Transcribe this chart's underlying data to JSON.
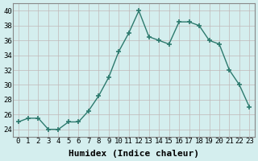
{
  "x": [
    0,
    1,
    2,
    3,
    4,
    5,
    6,
    7,
    8,
    9,
    10,
    11,
    12,
    13,
    14,
    15,
    16,
    17,
    18,
    19,
    20,
    21,
    22,
    23
  ],
  "y": [
    25,
    25.5,
    25.5,
    24,
    24,
    25,
    25,
    26.5,
    28.5,
    31,
    34.5,
    37,
    40,
    36.5,
    36,
    35.5,
    38.5,
    38.5,
    38,
    36,
    35.5,
    32,
    30,
    27
  ],
  "line_color": "#2d7a6e",
  "marker": "+",
  "marker_size": 5,
  "marker_lw": 1.2,
  "bg_color": "#d4eeee",
  "grid_color": "#c0b8b8",
  "xlabel": "Humidex (Indice chaleur)",
  "xlabel_fontsize": 8,
  "tick_fontsize": 6.5,
  "ylim": [
    23,
    41
  ],
  "xlim": [
    -0.5,
    23.5
  ],
  "yticks": [
    24,
    26,
    28,
    30,
    32,
    34,
    36,
    38,
    40
  ],
  "xticks": [
    0,
    1,
    2,
    3,
    4,
    5,
    6,
    7,
    8,
    9,
    10,
    11,
    12,
    13,
    14,
    15,
    16,
    17,
    18,
    19,
    20,
    21,
    22,
    23
  ],
  "spine_color": "#888888",
  "line_width": 1.0
}
